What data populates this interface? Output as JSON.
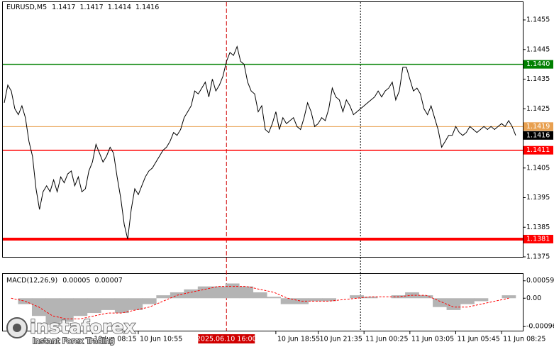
{
  "chart_data": [
    {
      "type": "line",
      "title": "EURUSD,M5",
      "ohlc": [
        1.1417,
        1.1417,
        1.1414,
        1.1416
      ],
      "color": "#000000",
      "values": [
        1.1427,
        1.1433,
        1.1431,
        1.1425,
        1.1423,
        1.1426,
        1.1422,
        1.1414,
        1.1409,
        1.1398,
        1.1391,
        1.1397,
        1.1399,
        1.1397,
        1.1401,
        1.1397,
        1.1402,
        1.14,
        1.1403,
        1.1404,
        1.1399,
        1.1402,
        1.1397,
        1.1398,
        1.1404,
        1.1407,
        1.1413,
        1.141,
        1.1407,
        1.1409,
        1.1412,
        1.141,
        1.1402,
        1.1395,
        1.1386,
        1.1381,
        1.1391,
        1.1398,
        1.1396,
        1.1399,
        1.1402,
        1.1404,
        1.1405,
        1.1407,
        1.1409,
        1.1411,
        1.1412,
        1.1414,
        1.1417,
        1.1416,
        1.1418,
        1.1422,
        1.1424,
        1.1426,
        1.1431,
        1.143,
        1.1432,
        1.1434,
        1.1429,
        1.1435,
        1.1431,
        1.1433,
        1.1436,
        1.1441,
        1.1444,
        1.1443,
        1.1446,
        1.1441,
        1.144,
        1.1434,
        1.1431,
        1.143,
        1.1424,
        1.1426,
        1.1418,
        1.1417,
        1.142,
        1.1424,
        1.1418,
        1.1422,
        1.142,
        1.1421,
        1.1422,
        1.1419,
        1.1418,
        1.1422,
        1.1427,
        1.1424,
        1.1419,
        1.142,
        1.1422,
        1.1421,
        1.1425,
        1.1432,
        1.1429,
        1.1428,
        1.1424,
        1.1428,
        1.1426,
        1.1423,
        1.1424,
        1.1425,
        1.1426,
        1.1427,
        1.1428,
        1.1429,
        1.1431,
        1.1429,
        1.1431,
        1.1432,
        1.1434,
        1.1428,
        1.1431,
        1.1439,
        1.1439,
        1.1435,
        1.1431,
        1.1432,
        1.143,
        1.1425,
        1.1423,
        1.1426,
        1.1422,
        1.1418,
        1.1412,
        1.1414,
        1.1416,
        1.1416,
        1.1419,
        1.1417,
        1.1416,
        1.1417,
        1.1419,
        1.1418,
        1.1417,
        1.1418,
        1.1419,
        1.1418,
        1.1419,
        1.1418,
        1.1419,
        1.142,
        1.1419,
        1.1421,
        1.1419,
        1.1416
      ],
      "ylim": [
        1.1375,
        1.1461
      ],
      "yticks": [
        1.1455,
        1.1445,
        1.1435,
        1.1425,
        1.1405,
        1.1395,
        1.1385,
        1.1375
      ],
      "levels": [
        {
          "value": 1.144,
          "label": "1.1440",
          "color": "#008000",
          "width": 1.5
        },
        {
          "value": 1.1419,
          "color": "#e8a050",
          "width": 1
        },
        {
          "value": 1.1411,
          "color": "#ff0000",
          "width": 1.5
        },
        {
          "value": 1.1381,
          "color": "#ff0000",
          "width": 4
        }
      ],
      "last": 1.1416,
      "xticks": [
        {
          "value": 25,
          "label": "10 Jun 08:15"
        },
        {
          "value": 38,
          "label": "10 Jun 10:55"
        },
        {
          "value": 77,
          "label": "10 Jun 18:55"
        },
        {
          "value": 89,
          "label": "10 Jun 21:35"
        },
        {
          "value": 102,
          "label": "11 Jun 00:25"
        },
        {
          "value": 115,
          "label": "11 Jun 03:05"
        },
        {
          "value": 128,
          "label": "11 Jun 05:45"
        },
        {
          "value": 141,
          "label": "11 Jun 08:25"
        }
      ],
      "highlight": {
        "value": 63,
        "label": "2025.06.10 16:00"
      },
      "separator": 101,
      "watermark": {
        "brand": "instaforex",
        "slogan": "Instant Forex Trading"
      }
    },
    {
      "type": "macd",
      "title": "MACD(12,26,9)",
      "readout": [
        5e-05,
        7e-05
      ],
      "color": "#b4b4b4",
      "signal_color": "#ff0000",
      "values": [
        0,
        -0.0002,
        -0.0006,
        -0.0009,
        -0.0008,
        -0.0006,
        -0.0005,
        -0.0004,
        -0.0005,
        -0.0004,
        -0.0002,
        0.0001,
        0.0002,
        0.0003,
        0.0004,
        0.0004,
        0.0005,
        0.0004,
        0.0002,
        5e-05,
        -0.0002,
        -0.0002,
        -0.0001,
        -0.0001,
        0,
        0.0001,
        5e-05,
        0,
        0.0001,
        0.0002,
        0.0001,
        -0.0003,
        -0.0004,
        -0.0002,
        -0.0001,
        0,
        0.0001
      ],
      "signal": [
        0,
        -0.0001,
        -0.0003,
        -0.0006,
        -0.0007,
        -0.0007,
        -0.0006,
        -0.0005,
        -0.0005,
        -0.0004,
        -0.0003,
        -0.0001,
        0.0001,
        0.0002,
        0.0003,
        0.0004,
        0.0004,
        0.0004,
        0.0003,
        0.0002,
        0,
        -0.0001,
        -0.0001,
        -0.0001,
        -5e-05,
        0,
        5e-05,
        5e-05,
        5e-05,
        0.0001,
        0.0001,
        -0.0001,
        -0.0003,
        -0.0003,
        -0.0002,
        -0.0001,
        0
      ],
      "ylim": [
        -0.0011,
        0.0008
      ],
      "yticks": [
        0.00059,
        {
          "value": 0,
          "label": "0.00"
        },
        -0.00096
      ]
    }
  ]
}
